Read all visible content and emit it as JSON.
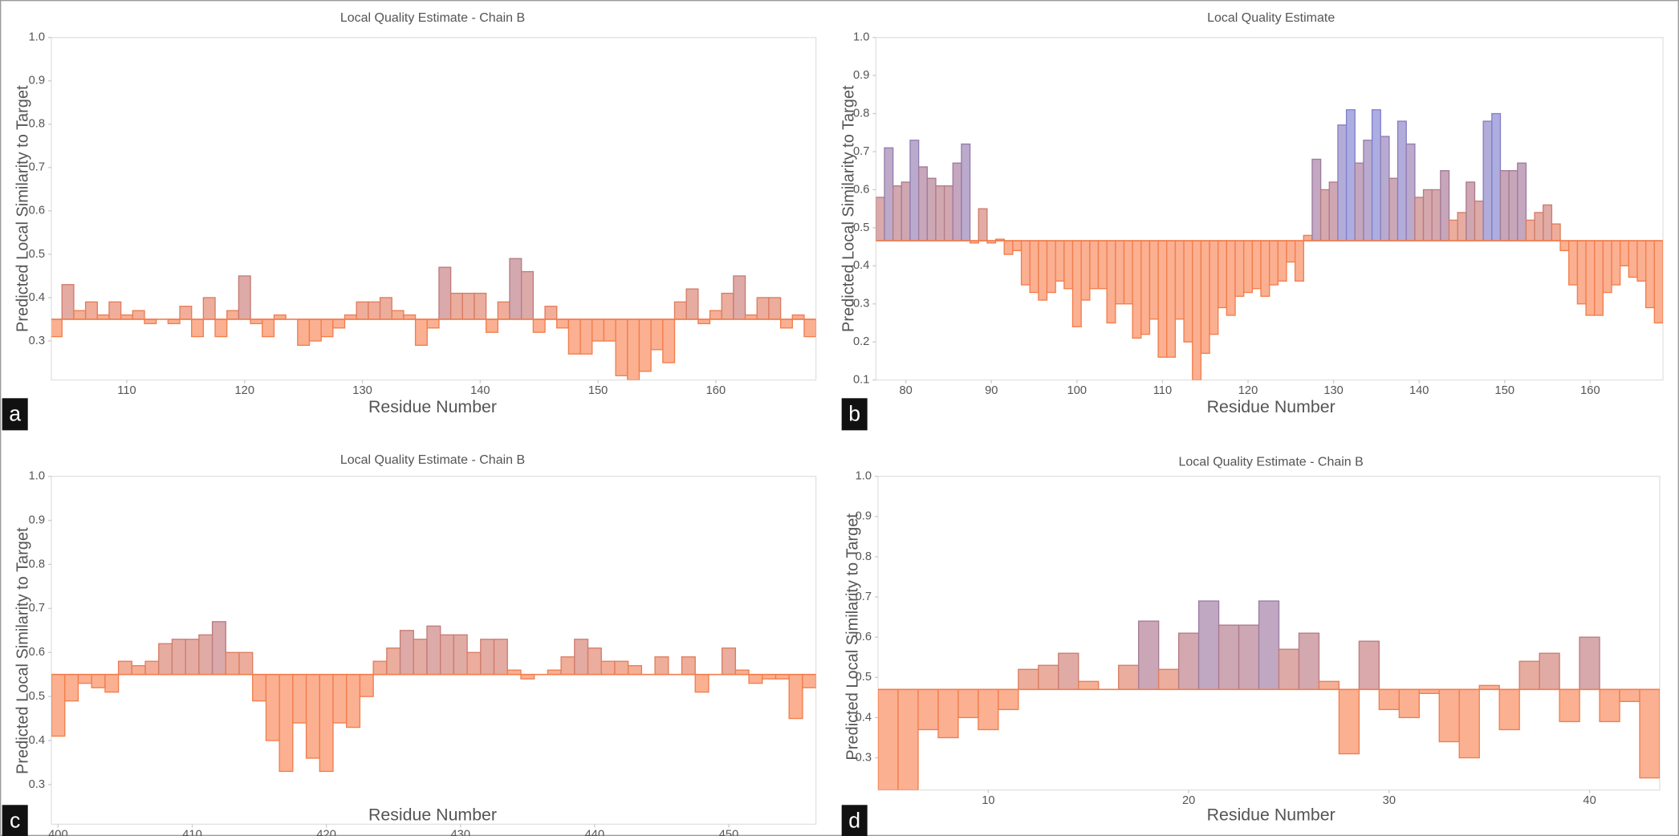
{
  "chart_data": [
    {
      "type": "bar",
      "panel": "a",
      "title": "Local Quality Estimate - Chain B",
      "x_label": "Residue Number",
      "y_label": "Predicted Local Similarity to Target",
      "baseline": 0.35,
      "xlim": [
        103.6,
        168.5
      ],
      "ylim": [
        0.21,
        1.0
      ],
      "xticks": [
        110,
        120,
        130,
        140,
        150,
        160
      ],
      "yticks": [
        {
          "value": 1,
          "label": "1.0"
        },
        0.9,
        0.8,
        0.7,
        0.6,
        0.5,
        0.4,
        0.3
      ],
      "fill_colors": [
        "#fbb091",
        "#c9a6b7",
        "#abaee3"
      ],
      "stroke_colors": [
        "#f27d4c",
        "#a47a95",
        "#7f7fd0"
      ],
      "x": [
        104,
        105,
        106,
        107,
        108,
        109,
        110,
        111,
        112,
        113,
        114,
        115,
        116,
        117,
        118,
        119,
        120,
        121,
        122,
        123,
        124,
        125,
        126,
        127,
        128,
        129,
        130,
        131,
        132,
        133,
        134,
        135,
        136,
        137,
        138,
        139,
        140,
        141,
        142,
        143,
        144,
        145,
        146,
        147,
        148,
        149,
        150,
        151,
        152,
        153,
        154,
        155,
        156,
        157,
        158,
        159,
        160,
        161,
        162,
        163,
        164,
        165,
        166,
        167,
        168
      ],
      "values": [
        0.31,
        0.43,
        0.37,
        0.39,
        0.36,
        0.39,
        0.36,
        0.37,
        0.34,
        0.35,
        0.34,
        0.38,
        0.31,
        0.4,
        0.31,
        0.37,
        0.45,
        0.34,
        0.31,
        0.36,
        0.35,
        0.29,
        0.3,
        0.31,
        0.33,
        0.36,
        0.39,
        0.39,
        0.4,
        0.37,
        0.36,
        0.29,
        0.33,
        0.47,
        0.41,
        0.41,
        0.41,
        0.32,
        0.39,
        0.49,
        0.46,
        0.32,
        0.38,
        0.33,
        0.27,
        0.27,
        0.3,
        0.3,
        0.22,
        0.21,
        0.23,
        0.28,
        0.25,
        0.39,
        0.42,
        0.34,
        0.37,
        0.41,
        0.45,
        0.36,
        0.4,
        0.4,
        0.33,
        0.36,
        0.31
      ]
    },
    {
      "type": "bar",
      "panel": "b",
      "title": "Local Quality Estimate",
      "x_label": "Residue Number",
      "y_label": "Predicted Local Similarity to Target",
      "baseline": 0.466,
      "xlim": [
        76.5,
        168.5
      ],
      "ylim": [
        0.1,
        1.0
      ],
      "xticks": [
        80,
        90,
        100,
        110,
        120,
        130,
        140,
        150,
        160
      ],
      "yticks": [
        {
          "value": 1,
          "label": "1.0"
        },
        0.9,
        0.8,
        0.7,
        0.6,
        0.5,
        0.4,
        0.3,
        0.2,
        0.1
      ],
      "fill_colors": [
        "#fbb091",
        "#c9a6b7",
        "#abaee3"
      ],
      "stroke_colors": [
        "#f27d4c",
        "#a47a95",
        "#7f7fd0"
      ],
      "x": [
        77,
        78,
        79,
        80,
        81,
        82,
        83,
        84,
        85,
        86,
        87,
        88,
        89,
        90,
        91,
        92,
        93,
        94,
        95,
        96,
        97,
        98,
        99,
        100,
        101,
        102,
        103,
        104,
        105,
        106,
        107,
        108,
        109,
        110,
        111,
        112,
        113,
        114,
        115,
        116,
        117,
        118,
        119,
        120,
        121,
        122,
        123,
        124,
        125,
        126,
        127,
        128,
        129,
        130,
        131,
        132,
        133,
        134,
        135,
        136,
        137,
        138,
        139,
        140,
        141,
        142,
        143,
        144,
        145,
        146,
        147,
        148,
        149,
        150,
        151,
        152,
        153,
        154,
        155,
        156,
        157,
        158,
        159,
        160,
        161,
        162,
        163,
        164,
        165,
        166,
        167,
        168
      ],
      "values": [
        0.58,
        0.71,
        0.61,
        0.62,
        0.73,
        0.66,
        0.63,
        0.61,
        0.61,
        0.67,
        0.72,
        0.46,
        0.55,
        0.46,
        0.47,
        0.43,
        0.44,
        0.35,
        0.33,
        0.31,
        0.33,
        0.36,
        0.34,
        0.24,
        0.31,
        0.34,
        0.34,
        0.25,
        0.3,
        0.3,
        0.21,
        0.22,
        0.26,
        0.16,
        0.16,
        0.26,
        0.2,
        0.1,
        0.17,
        0.22,
        0.29,
        0.27,
        0.32,
        0.33,
        0.34,
        0.32,
        0.35,
        0.36,
        0.41,
        0.36,
        0.48,
        0.68,
        0.6,
        0.62,
        0.77,
        0.81,
        0.67,
        0.73,
        0.81,
        0.74,
        0.63,
        0.78,
        0.72,
        0.58,
        0.6,
        0.6,
        0.65,
        0.52,
        0.54,
        0.62,
        0.57,
        0.78,
        0.8,
        0.65,
        0.65,
        0.67,
        0.52,
        0.54,
        0.56,
        0.51,
        0.44,
        0.35,
        0.3,
        0.27,
        0.27,
        0.33,
        0.35,
        0.4,
        0.37,
        0.36,
        0.29,
        0.25
      ]
    },
    {
      "type": "bar",
      "panel": "c",
      "title": "Local Quality Estimate - Chain B",
      "x_label": "Residue Number",
      "y_label": "Predicted Local Similarity to Target",
      "baseline": 0.55,
      "xlim": [
        399.5,
        456.5
      ],
      "ylim": [
        0.21,
        1.0
      ],
      "xticks": [
        400,
        410,
        420,
        430,
        440,
        450
      ],
      "yticks": [
        {
          "value": 1,
          "label": "1.0"
        },
        0.9,
        0.8,
        0.7,
        0.6,
        0.5,
        0.4,
        0.3
      ],
      "fill_colors": [
        "#fbb091",
        "#c9a6b7",
        "#abaee3"
      ],
      "stroke_colors": [
        "#f27d4c",
        "#a47a95",
        "#7f7fd0"
      ],
      "x": [
        400,
        401,
        402,
        403,
        404,
        405,
        406,
        407,
        408,
        409,
        410,
        411,
        412,
        413,
        414,
        415,
        416,
        417,
        418,
        419,
        420,
        421,
        422,
        423,
        424,
        425,
        426,
        427,
        428,
        429,
        430,
        431,
        432,
        433,
        434,
        435,
        436,
        437,
        438,
        439,
        440,
        441,
        442,
        443,
        444,
        445,
        446,
        447,
        448,
        449,
        450,
        451,
        452,
        453,
        454,
        455,
        456
      ],
      "values": [
        0.41,
        0.49,
        0.53,
        0.52,
        0.51,
        0.58,
        0.57,
        0.58,
        0.62,
        0.63,
        0.63,
        0.64,
        0.67,
        0.6,
        0.6,
        0.49,
        0.4,
        0.33,
        0.44,
        0.36,
        0.33,
        0.44,
        0.43,
        0.5,
        0.58,
        0.61,
        0.65,
        0.63,
        0.66,
        0.64,
        0.64,
        0.6,
        0.63,
        0.63,
        0.56,
        0.54,
        0.55,
        0.56,
        0.59,
        0.63,
        0.61,
        0.58,
        0.58,
        0.57,
        0.55,
        0.59,
        0.55,
        0.59,
        0.51,
        0.55,
        0.61,
        0.56,
        0.53,
        0.54,
        0.54,
        0.45,
        0.52
      ]
    },
    {
      "type": "bar",
      "panel": "d",
      "title": "Local Quality Estimate - Chain B",
      "x_label": "Residue Number",
      "y_label": "Predicted Local Similarity to Target",
      "baseline": 0.47,
      "xlim": [
        4.5,
        43.5
      ],
      "ylim": [
        0.22,
        1.0
      ],
      "xticks": [
        10,
        20,
        30,
        40
      ],
      "yticks": [
        {
          "value": 1,
          "label": "1.0"
        },
        0.9,
        0.8,
        0.7,
        0.6,
        0.5,
        0.4,
        0.3
      ],
      "fill_colors": [
        "#fbb091",
        "#c9a6b7",
        "#abaee3"
      ],
      "stroke_colors": [
        "#f27d4c",
        "#a47a95",
        "#7f7fd0"
      ],
      "x": [
        5,
        6,
        7,
        8,
        9,
        10,
        11,
        12,
        13,
        14,
        15,
        16,
        17,
        18,
        19,
        20,
        21,
        22,
        23,
        24,
        25,
        26,
        27,
        28,
        29,
        30,
        31,
        32,
        33,
        34,
        35,
        36,
        37,
        38,
        39,
        40,
        41,
        42,
        43
      ],
      "values": [
        0.22,
        0.22,
        0.37,
        0.35,
        0.4,
        0.37,
        0.42,
        0.52,
        0.53,
        0.56,
        0.49,
        0.47,
        0.53,
        0.64,
        0.52,
        0.61,
        0.69,
        0.63,
        0.63,
        0.69,
        0.57,
        0.61,
        0.49,
        0.31,
        0.59,
        0.42,
        0.4,
        0.46,
        0.34,
        0.3,
        0.48,
        0.37,
        0.54,
        0.56,
        0.39,
        0.6,
        0.39,
        0.44,
        0.25
      ]
    }
  ]
}
